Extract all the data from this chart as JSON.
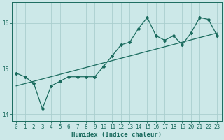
{
  "xlabel": "Humidex (Indice chaleur)",
  "ylabel": "",
  "bg_color": "#cce8e8",
  "line_color": "#1a6b5e",
  "grid_color": "#aacece",
  "xlim": [
    -0.5,
    23.5
  ],
  "ylim": [
    13.85,
    16.45
  ],
  "yticks": [
    14,
    15,
    16
  ],
  "xticks": [
    0,
    1,
    2,
    3,
    4,
    5,
    6,
    7,
    8,
    9,
    10,
    11,
    12,
    13,
    14,
    15,
    16,
    17,
    18,
    19,
    20,
    21,
    22,
    23
  ],
  "data_x": [
    0,
    1,
    2,
    3,
    4,
    5,
    6,
    7,
    8,
    9,
    10,
    11,
    12,
    13,
    14,
    15,
    16,
    17,
    18,
    19,
    20,
    21,
    22,
    23
  ],
  "data_y": [
    14.9,
    14.82,
    14.68,
    14.12,
    14.62,
    14.72,
    14.82,
    14.82,
    14.82,
    14.82,
    15.05,
    15.28,
    15.52,
    15.58,
    15.88,
    16.12,
    15.72,
    15.62,
    15.72,
    15.52,
    15.78,
    16.12,
    16.08,
    15.72
  ],
  "trend_x": [
    0,
    23
  ],
  "trend_y": [
    14.62,
    15.78
  ]
}
